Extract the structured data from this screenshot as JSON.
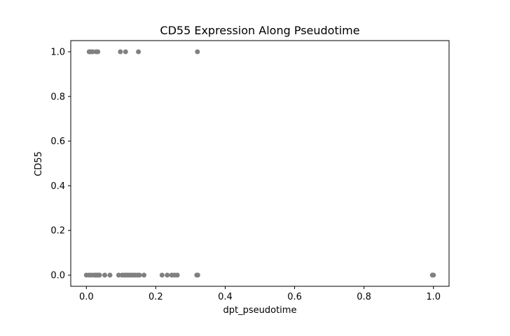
{
  "chart_data": {
    "type": "scatter",
    "title": "CD55 Expression Along Pseudotime",
    "xlabel": "dpt_pseudotime",
    "ylabel": "CD55",
    "xlim": [
      -0.045,
      1.045
    ],
    "ylim": [
      -0.05,
      1.05
    ],
    "x_ticks": [
      0.0,
      0.2,
      0.4,
      0.6,
      0.8,
      1.0
    ],
    "x_tick_labels": [
      "0.0",
      "0.2",
      "0.4",
      "0.6",
      "0.8",
      "1.0"
    ],
    "y_ticks": [
      0.0,
      0.2,
      0.4,
      0.6,
      0.8,
      1.0
    ],
    "y_tick_labels": [
      "0.0",
      "0.2",
      "0.4",
      "0.6",
      "0.8",
      "1.0"
    ],
    "grid": false,
    "marker_color": "#808080",
    "points": [
      {
        "x": 0.008,
        "y": 1.0
      },
      {
        "x": 0.012,
        "y": 1.0
      },
      {
        "x": 0.018,
        "y": 1.0
      },
      {
        "x": 0.028,
        "y": 1.0
      },
      {
        "x": 0.033,
        "y": 1.0
      },
      {
        "x": 0.098,
        "y": 1.0
      },
      {
        "x": 0.113,
        "y": 1.0
      },
      {
        "x": 0.15,
        "y": 1.0
      },
      {
        "x": 0.32,
        "y": 1.0
      },
      {
        "x": 0.0,
        "y": 0.0
      },
      {
        "x": 0.008,
        "y": 0.0
      },
      {
        "x": 0.015,
        "y": 0.0
      },
      {
        "x": 0.023,
        "y": 0.0
      },
      {
        "x": 0.028,
        "y": 0.0
      },
      {
        "x": 0.033,
        "y": 0.0
      },
      {
        "x": 0.038,
        "y": 0.0
      },
      {
        "x": 0.053,
        "y": 0.0
      },
      {
        "x": 0.068,
        "y": 0.0
      },
      {
        "x": 0.093,
        "y": 0.0
      },
      {
        "x": 0.103,
        "y": 0.0
      },
      {
        "x": 0.11,
        "y": 0.0
      },
      {
        "x": 0.116,
        "y": 0.0
      },
      {
        "x": 0.122,
        "y": 0.0
      },
      {
        "x": 0.128,
        "y": 0.0
      },
      {
        "x": 0.134,
        "y": 0.0
      },
      {
        "x": 0.14,
        "y": 0.0
      },
      {
        "x": 0.147,
        "y": 0.0
      },
      {
        "x": 0.153,
        "y": 0.0
      },
      {
        "x": 0.166,
        "y": 0.0
      },
      {
        "x": 0.218,
        "y": 0.0
      },
      {
        "x": 0.233,
        "y": 0.0
      },
      {
        "x": 0.246,
        "y": 0.0
      },
      {
        "x": 0.254,
        "y": 0.0
      },
      {
        "x": 0.262,
        "y": 0.0
      },
      {
        "x": 0.318,
        "y": 0.0
      },
      {
        "x": 0.321,
        "y": 0.0
      },
      {
        "x": 0.997,
        "y": 0.0
      },
      {
        "x": 1.0,
        "y": 0.0
      }
    ]
  }
}
